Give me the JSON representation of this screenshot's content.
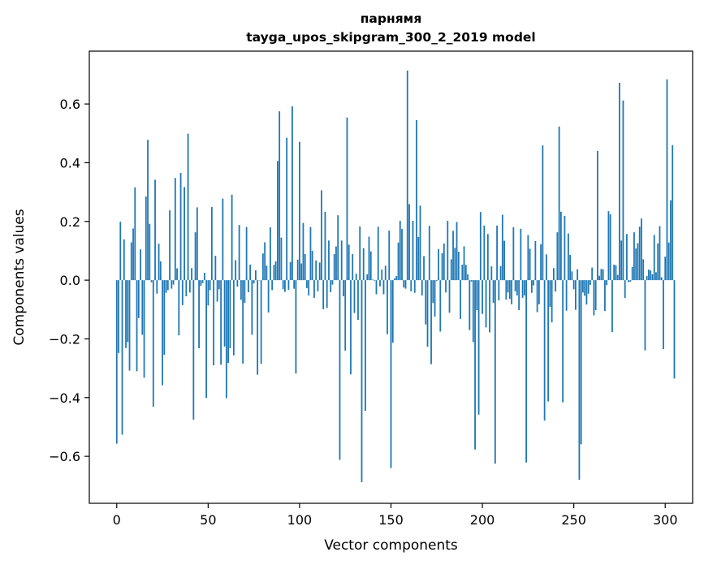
{
  "chart_data": {
    "type": "bar",
    "title_line1": "парнямя",
    "title_line2": "tayga_upos_skipgram_300_2_2019 model",
    "xlabel": "Vector components",
    "ylabel": "Components values",
    "xlim": [
      -15,
      315
    ],
    "ylim": [
      -0.76,
      0.78
    ],
    "xticks": [
      0,
      50,
      100,
      150,
      200,
      250,
      300
    ],
    "xtick_labels": [
      "0",
      "50",
      "100",
      "150",
      "200",
      "250",
      "300"
    ],
    "yticks": [
      -0.6,
      -0.4,
      -0.2,
      0.0,
      0.2,
      0.4,
      0.6
    ],
    "ytick_labels": [
      "−0.6",
      "−0.4",
      "−0.2",
      "0.0",
      "0.2",
      "0.4",
      "0.6"
    ],
    "bar_color": "#1f77b4",
    "values": [
      -0.557,
      -0.248,
      0.199,
      -0.526,
      0.139,
      -0.231,
      -0.211,
      -0.308,
      0.129,
      0.176,
      0.316,
      -0.31,
      -0.129,
      0.105,
      -0.186,
      -0.332,
      0.285,
      0.478,
      0.192,
      -0.007,
      -0.431,
      0.342,
      -0.046,
      0.124,
      0.064,
      -0.358,
      -0.254,
      -0.043,
      -0.034,
      0.238,
      -0.029,
      -0.015,
      0.348,
      0.04,
      -0.188,
      0.365,
      -0.085,
      0.317,
      -0.055,
      0.499,
      -0.042,
      0.041,
      -0.475,
      0.163,
      0.248,
      -0.232,
      -0.019,
      -0.01,
      0.025,
      -0.401,
      -0.086,
      -0.034,
      0.249,
      -0.29,
      0.083,
      -0.073,
      -0.031,
      -0.288,
      0.278,
      -0.226,
      -0.402,
      -0.282,
      -0.232,
      0.291,
      -0.256,
      0.068,
      -0.022,
      0.188,
      -0.067,
      -0.284,
      -0.077,
      0.181,
      -0.041,
      0.053,
      -0.186,
      -0.011,
      0.034,
      -0.322,
      -0.001,
      -0.285,
      0.091,
      0.129,
      0.049,
      -0.11,
      0.18,
      -0.034,
      0.052,
      0.064,
      0.406,
      0.575,
      0.145,
      -0.031,
      -0.04,
      0.485,
      -0.033,
      0.062,
      0.592,
      -0.029,
      -0.318,
      0.07,
      0.471,
      0.057,
      0.195,
      0.089,
      -0.027,
      -0.052,
      0.181,
      0.1,
      -0.06,
      0.067,
      -0.038,
      0.06,
      0.306,
      -0.099,
      0.233,
      -0.095,
      0.135,
      -0.041,
      -0.015,
      0.089,
      0.115,
      0.221,
      -0.612,
      0.135,
      -0.055,
      -0.24,
      0.554,
      0.121,
      -0.321,
      0.089,
      -0.112,
      0.022,
      -0.135,
      0.183,
      -0.688,
      0.109,
      -0.445,
      0.02,
      0.148,
      0.098,
      0.002,
      -0.002,
      -0.048,
      0.182,
      -0.021,
      0.036,
      -0.048,
      0.049,
      -0.184,
      0.169,
      -0.64,
      -0.213,
      0.006,
      0.014,
      0.128,
      0.202,
      0.174,
      -0.025,
      -0.029,
      0.714,
      0.259,
      -0.038,
      0.202,
      -0.043,
      0.545,
      0.147,
      0.254,
      -0.052,
      0.082,
      -0.151,
      -0.227,
      0.185,
      -0.286,
      -0.078,
      -0.124,
      -0.003,
      0.106,
      -0.175,
      0.092,
      0.125,
      -0.042,
      0.202,
      -0.111,
      0.071,
      0.168,
      0.11,
      0.198,
      0.097,
      -0.132,
      0.053,
      0.115,
      0.052,
      0.02,
      -0.17,
      -0.005,
      -0.211,
      -0.577,
      -0.102,
      -0.458,
      0.232,
      -0.115,
      0.186,
      -0.161,
      0.157,
      -0.178,
      0.047,
      -0.077,
      -0.625,
      0.186,
      -0.069,
      0.048,
      0.223,
      0.134,
      -0.066,
      -0.042,
      -0.064,
      -0.082,
      0.18,
      -0.038,
      -0.052,
      -0.102,
      0.175,
      -0.06,
      -0.052,
      -0.621,
      0.154,
      0.107,
      -0.043,
      -0.018,
      0.133,
      -0.109,
      -0.082,
      0.122,
      0.459,
      -0.478,
      0.088,
      -0.413,
      -0.091,
      -0.144,
      0.041,
      -0.039,
      0.163,
      0.523,
      0.233,
      -0.416,
      0.219,
      -0.104,
      0.159,
      0.086,
      0.03,
      -0.031,
      -0.101,
      0.037,
      -0.68,
      -0.559,
      -0.042,
      -0.053,
      -0.083,
      -0.046,
      -0.016,
      0.043,
      -0.12,
      -0.102,
      0.44,
      0.015,
      0.038,
      0.037,
      -0.105,
      -0.017,
      0.235,
      0.224,
      -0.177,
      0.053,
      0.051,
      0.018,
      0.672,
      0.135,
      0.612,
      -0.061,
      0.157,
      -0.007,
      -0.005,
      0.045,
      0.163,
      0.108,
      0.126,
      0.182,
      0.21,
      0.071,
      -0.239,
      0.014,
      0.036,
      0.033,
      0.02,
      0.154,
      0.027,
      0.125,
      0.184,
      0.01,
      -0.235,
      0.08,
      0.684,
      0.128,
      0.272,
      0.46,
      -0.335
    ]
  }
}
